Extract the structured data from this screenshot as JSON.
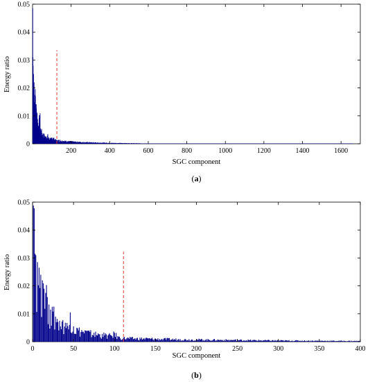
{
  "chart_data": [
    {
      "type": "bar",
      "caption_letter": "a",
      "xlabel": "SGC component",
      "ylabel": "Energy ratio",
      "xlim": [
        0,
        1700
      ],
      "ylim": [
        0,
        0.05
      ],
      "xticks": [
        200,
        400,
        600,
        800,
        1000,
        1200,
        1400,
        1600
      ],
      "yticks": [
        0,
        0.01,
        0.02,
        0.03,
        0.04,
        0.05
      ],
      "grid": false,
      "bar_color": "#00008b",
      "threshold": {
        "x": 126,
        "height": 0.0335,
        "color": "#e8332a",
        "style": "dashed"
      },
      "n_components": 1660,
      "points": [
        [
          1,
          0.0485
        ],
        [
          2,
          0.031
        ],
        [
          3,
          0.028
        ],
        [
          5,
          0.025
        ],
        [
          8,
          0.022
        ],
        [
          12,
          0.0175
        ],
        [
          15,
          0.017
        ],
        [
          20,
          0.0125
        ],
        [
          24,
          0.011
        ],
        [
          28,
          0.0075
        ],
        [
          32,
          0.0065
        ],
        [
          38,
          0.0102
        ],
        [
          42,
          0.0055
        ],
        [
          48,
          0.004
        ],
        [
          55,
          0.0035
        ],
        [
          62,
          0.0028
        ],
        [
          70,
          0.0025
        ],
        [
          78,
          0.003
        ],
        [
          85,
          0.002
        ],
        [
          95,
          0.0018
        ],
        [
          105,
          0.0022
        ],
        [
          115,
          0.0015
        ],
        [
          126,
          0.0012
        ],
        [
          140,
          0.0013
        ],
        [
          160,
          0.001
        ],
        [
          180,
          0.0009
        ],
        [
          200,
          0.0008
        ],
        [
          250,
          0.0006
        ],
        [
          300,
          0.0005
        ],
        [
          350,
          0.0004
        ],
        [
          400,
          0.0003
        ],
        [
          500,
          0.0002
        ],
        [
          600,
          0.0001
        ],
        [
          800,
          0.0001
        ],
        [
          1000,
          0.0001
        ],
        [
          1200,
          0.0001
        ],
        [
          1400,
          0.0001
        ],
        [
          1660,
          0.0001
        ]
      ]
    },
    {
      "type": "bar",
      "caption_letter": "b",
      "xlabel": "SGC component",
      "ylabel": "Energy ratio",
      "xlim": [
        0,
        400
      ],
      "ylim": [
        0,
        0.05
      ],
      "xticks": [
        0,
        50,
        100,
        150,
        200,
        250,
        300,
        350,
        400
      ],
      "yticks": [
        0,
        0.01,
        0.02,
        0.03,
        0.04,
        0.05
      ],
      "grid": false,
      "bar_color": "#00008b",
      "threshold": {
        "x": 111,
        "height": 0.0322,
        "color": "#e8332a",
        "style": "dashed"
      },
      "n_components": 400,
      "points": [
        [
          1,
          0.0488
        ],
        [
          2,
          0.0478
        ],
        [
          3,
          0.0315
        ],
        [
          4,
          0.031
        ],
        [
          6,
          0.0285
        ],
        [
          8,
          0.0265
        ],
        [
          10,
          0.024
        ],
        [
          12,
          0.022
        ],
        [
          14,
          0.019
        ],
        [
          16,
          0.0175
        ],
        [
          18,
          0.016
        ],
        [
          20,
          0.0133
        ],
        [
          22,
          0.0115
        ],
        [
          25,
          0.0108
        ],
        [
          28,
          0.009
        ],
        [
          30,
          0.0082
        ],
        [
          33,
          0.0075
        ],
        [
          36,
          0.0072
        ],
        [
          40,
          0.0068
        ],
        [
          45,
          0.006
        ],
        [
          46,
          0.0105
        ],
        [
          50,
          0.0055
        ],
        [
          55,
          0.0048
        ],
        [
          60,
          0.0042
        ],
        [
          65,
          0.004
        ],
        [
          70,
          0.0035
        ],
        [
          75,
          0.0032
        ],
        [
          80,
          0.003
        ],
        [
          85,
          0.0028
        ],
        [
          90,
          0.0026
        ],
        [
          95,
          0.0024
        ],
        [
          100,
          0.0032
        ],
        [
          105,
          0.0018
        ],
        [
          111,
          0.0015
        ],
        [
          120,
          0.0014
        ],
        [
          140,
          0.0013
        ],
        [
          160,
          0.0011
        ],
        [
          180,
          0.001
        ],
        [
          200,
          0.0009
        ],
        [
          250,
          0.0007
        ],
        [
          300,
          0.0005
        ],
        [
          350,
          0.0004
        ],
        [
          400,
          0.0003
        ]
      ]
    }
  ]
}
